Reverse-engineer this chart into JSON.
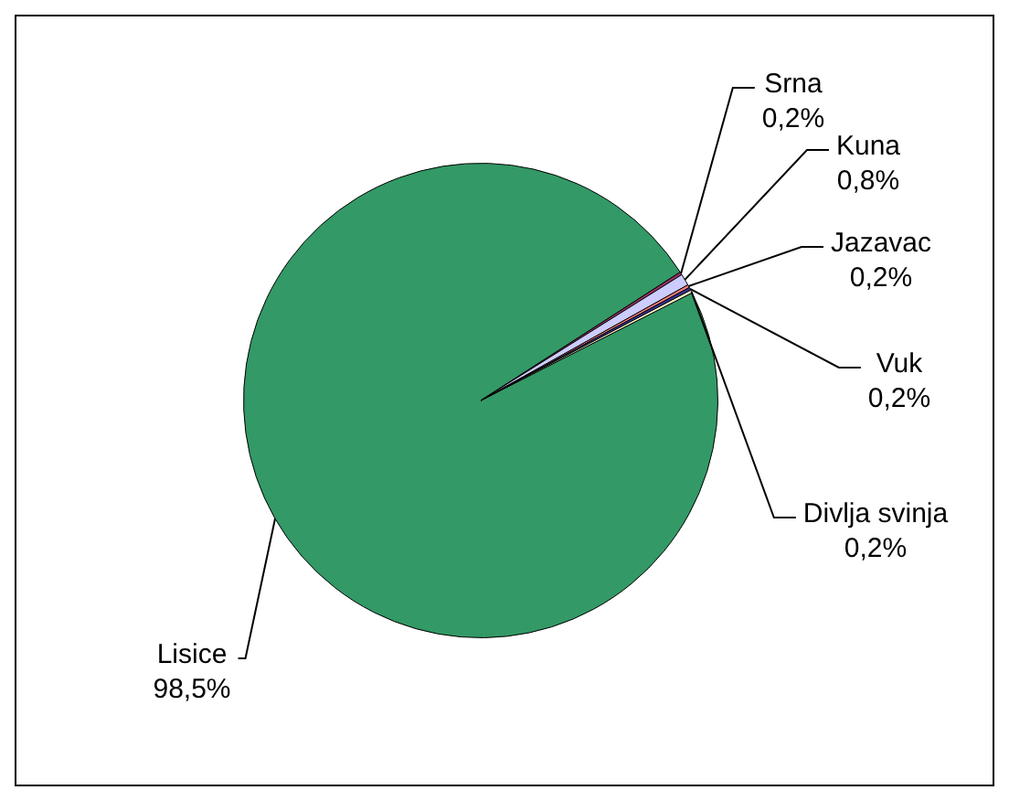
{
  "chart_data": {
    "type": "pie",
    "categories": [
      "Lisice",
      "Srna",
      "Kuna",
      "Jazavac",
      "Vuk",
      "Divlja svinja"
    ],
    "values": [
      98.5,
      0.2,
      0.8,
      0.2,
      0.2,
      0.2
    ],
    "colors": [
      "#339966",
      "#993366",
      "#ccccff",
      "#ff8080",
      "#333399",
      "#ffffcc"
    ],
    "value_labels": [
      "98,5%",
      "0,2%",
      "0,8%",
      "0,2%",
      "0,2%",
      "0,2%"
    ],
    "legend": false
  }
}
